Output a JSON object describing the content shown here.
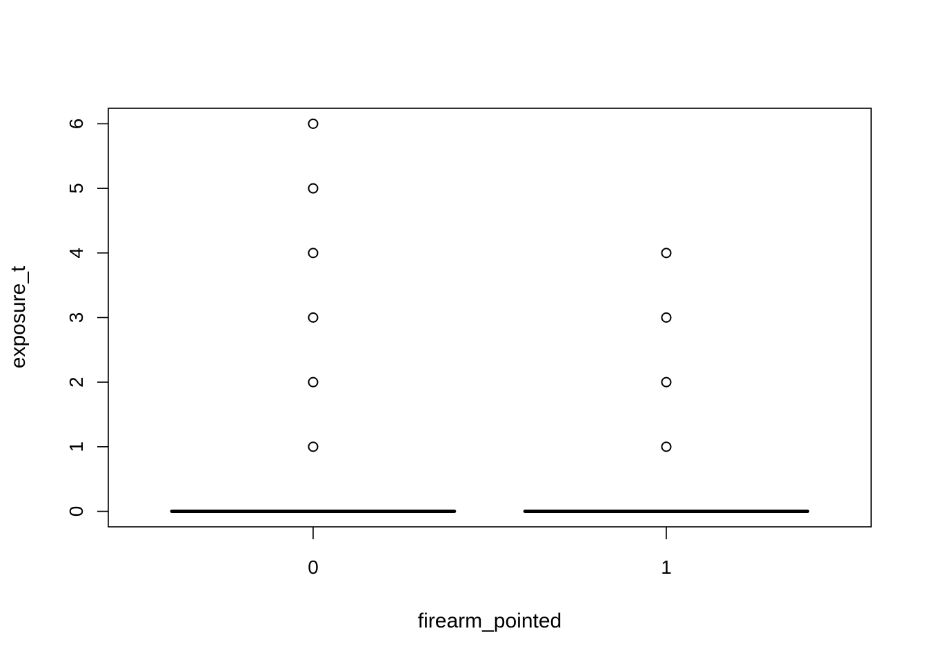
{
  "chart_data": {
    "type": "boxplot",
    "title": "",
    "xlabel": "firearm_pointed",
    "ylabel": "exposure_t",
    "categories": [
      "0",
      "1"
    ],
    "ylim": [
      -0.24,
      6.24
    ],
    "yticks": [
      0,
      1,
      2,
      3,
      4,
      5,
      6
    ],
    "grid": false,
    "boxes": [
      {
        "category": "0",
        "min": 0,
        "q1": 0,
        "median": 0,
        "q3": 0,
        "max": 0,
        "outliers": [
          1,
          2,
          3,
          4,
          5,
          6
        ]
      },
      {
        "category": "1",
        "min": 0,
        "q1": 0,
        "median": 0,
        "q3": 0,
        "max": 0,
        "outliers": [
          1,
          2,
          3,
          4
        ]
      }
    ]
  }
}
